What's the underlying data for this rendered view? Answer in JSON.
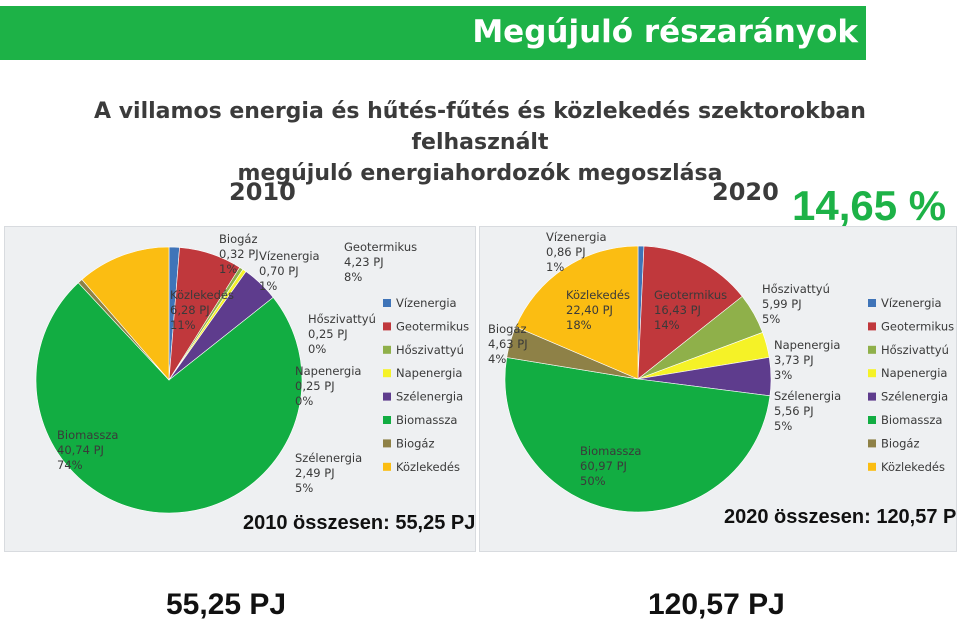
{
  "header": {
    "title": "Megújuló részarányok",
    "subtitle_line1": "A villamos energia és hűtés-fűtés és közlekedés szektorokban felhasznált",
    "subtitle_line2": "megújuló energiahordozók megoszlása",
    "highlight_percent": "14,65 %"
  },
  "footer": {
    "left_total": "55,25 PJ",
    "right_total": "120,57 PJ"
  },
  "chart_data": [
    {
      "type": "pie",
      "title": "2010",
      "total_label": "2010 összesen: 55,25 PJ",
      "unit": "PJ",
      "slices": [
        {
          "name": "Vízenergia",
          "value": 0.7,
          "value_label": "0,70 PJ",
          "percent": "1%",
          "color": "#3f74b8"
        },
        {
          "name": "Geotermikus",
          "value": 4.23,
          "value_label": "4,23 PJ",
          "percent": "8%",
          "color": "#c0383c"
        },
        {
          "name": "Hőszivattyú",
          "value": 0.25,
          "value_label": "0,25 PJ",
          "percent": "0%",
          "color": "#8fb04a"
        },
        {
          "name": "Napenergia",
          "value": 0.25,
          "value_label": "0,25 PJ",
          "percent": "0%",
          "color": "#f5f227"
        },
        {
          "name": "Szélenergia",
          "value": 2.49,
          "value_label": "2,49 PJ",
          "percent": "5%",
          "color": "#5e3c8d"
        },
        {
          "name": "Biomassza",
          "value": 40.74,
          "value_label": "40,74 PJ",
          "percent": "74%",
          "color": "#12ad42"
        },
        {
          "name": "Biogáz",
          "value": 0.32,
          "value_label": "0,32 PJ",
          "percent": "1%",
          "color": "#8e8147"
        },
        {
          "name": "Közlekedés",
          "value": 6.28,
          "value_label": "6,28 PJ",
          "percent": "11%",
          "color": "#fbbd12"
        }
      ]
    },
    {
      "type": "pie",
      "title": "2020",
      "total_label": "2020 összesen: 120,57 PJ",
      "unit": "PJ",
      "slices": [
        {
          "name": "Vízenergia",
          "value": 0.86,
          "value_label": "0,86 PJ",
          "percent": "1%",
          "color": "#3f74b8"
        },
        {
          "name": "Geotermikus",
          "value": 16.43,
          "value_label": "16,43 PJ",
          "percent": "14%",
          "color": "#c0383c"
        },
        {
          "name": "Hőszivattyú",
          "value": 5.99,
          "value_label": "5,99 PJ",
          "percent": "5%",
          "color": "#8fb04a"
        },
        {
          "name": "Napenergia",
          "value": 3.73,
          "value_label": "3,73 PJ",
          "percent": "3%",
          "color": "#f5f227"
        },
        {
          "name": "Szélenergia",
          "value": 5.56,
          "value_label": "5,56 PJ",
          "percent": "5%",
          "color": "#5e3c8d"
        },
        {
          "name": "Biomassza",
          "value": 60.97,
          "value_label": "60,97 PJ",
          "percent": "50%",
          "color": "#12ad42"
        },
        {
          "name": "Biogáz",
          "value": 4.63,
          "value_label": "4,63 PJ",
          "percent": "4%",
          "color": "#8e8147"
        },
        {
          "name": "Közlekedés",
          "value": 22.4,
          "value_label": "22,40 PJ",
          "percent": "18%",
          "color": "#fbbd12"
        }
      ]
    }
  ]
}
